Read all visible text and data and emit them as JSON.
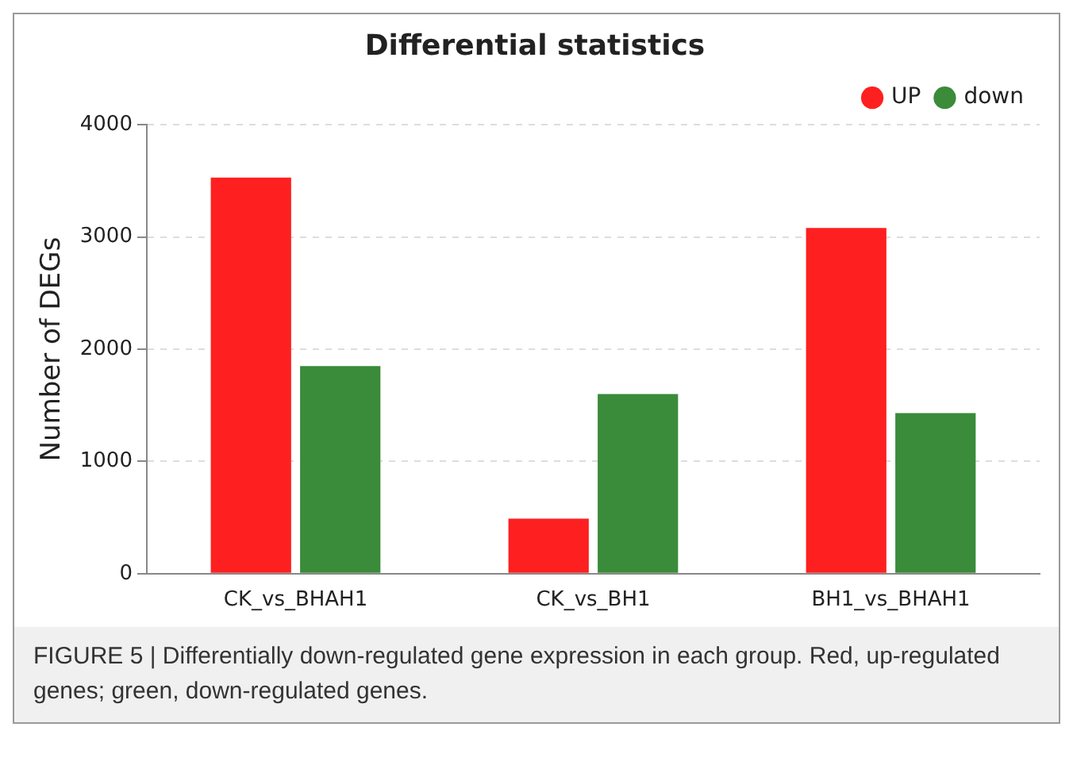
{
  "chart_data": {
    "type": "bar",
    "title": "Differential statistics",
    "ylabel": "Number of DEGs",
    "categories": [
      "CK_vs_BHAH1",
      "CK_vs_BH1",
      "BH1_vs_BHAH1"
    ],
    "series": [
      {
        "name": "UP",
        "color": "#fe2020",
        "values": [
          3530,
          490,
          3080
        ]
      },
      {
        "name": "down",
        "color": "#3a8b3a",
        "values": [
          1850,
          1600,
          1430
        ]
      }
    ],
    "ylim": [
      0,
      4000
    ],
    "yticks": [
      0,
      1000,
      2000,
      3000,
      4000
    ],
    "grid": "y",
    "legend": "top right",
    "annotations": [
      "FIGURE 5 | Differentially down-regulated gene expression in each group. Red, up-regulated genes; green, down-regulated genes."
    ]
  }
}
